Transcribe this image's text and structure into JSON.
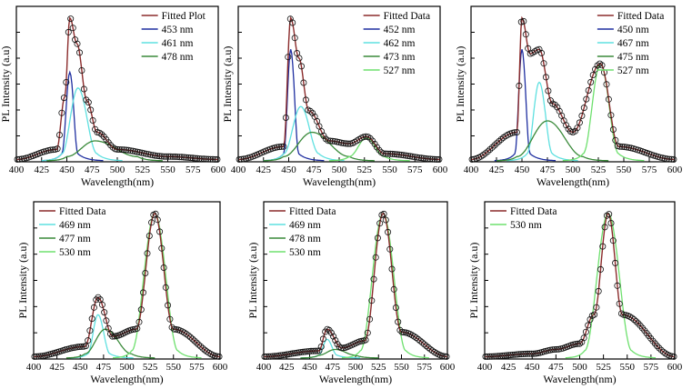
{
  "figure": {
    "title": ""
  },
  "chart_data": [
    {
      "type": "line",
      "ylabel": "PL Intensity (a.u)",
      "xlabel": "Wavelength(nm)",
      "xlim": [
        400,
        600
      ],
      "xticks": [
        400,
        425,
        450,
        475,
        500,
        525,
        550,
        575,
        600
      ],
      "legend_position": "top-right",
      "series": [
        {
          "name": "Fitted Plot",
          "color": "#8b2b2b",
          "values": [
            {
              "x": 400,
              "y": 0.01
            },
            {
              "x": 440,
              "y": 0.08
            },
            {
              "x": 448,
              "y": 0.45
            },
            {
              "x": 453,
              "y": 1.0
            },
            {
              "x": 460,
              "y": 0.82
            },
            {
              "x": 470,
              "y": 0.42
            },
            {
              "x": 480,
              "y": 0.2
            },
            {
              "x": 500,
              "y": 0.08
            },
            {
              "x": 550,
              "y": 0.03
            },
            {
              "x": 600,
              "y": 0.01
            }
          ]
        },
        {
          "name": "453 nm",
          "color": "#1f2fa0",
          "values": [
            {
              "x": 445,
              "y": 0.05
            },
            {
              "x": 453,
              "y": 0.62
            },
            {
              "x": 461,
              "y": 0.05
            }
          ]
        },
        {
          "name": "461 nm",
          "color": "#5fe0e0",
          "values": [
            {
              "x": 445,
              "y": 0.05
            },
            {
              "x": 461,
              "y": 0.51
            },
            {
              "x": 480,
              "y": 0.05
            }
          ]
        },
        {
          "name": "478 nm",
          "color": "#3a8a3a",
          "values": [
            {
              "x": 450,
              "y": 0.03
            },
            {
              "x": 478,
              "y": 0.14
            },
            {
              "x": 520,
              "y": 0.03
            }
          ]
        }
      ]
    },
    {
      "type": "line",
      "ylabel": "PL Intensity (a.u)",
      "xlabel": "Wavelength(nm)",
      "xlim": [
        400,
        600
      ],
      "xticks": [
        400,
        425,
        450,
        475,
        500,
        525,
        550,
        575,
        600
      ],
      "legend_position": "top-right",
      "series": [
        {
          "name": "Fitted Data",
          "color": "#8b2b2b",
          "values": [
            {
              "x": 400,
              "y": 0.01
            },
            {
              "x": 445,
              "y": 0.1
            },
            {
              "x": 452,
              "y": 1.0
            },
            {
              "x": 460,
              "y": 0.72
            },
            {
              "x": 470,
              "y": 0.35
            },
            {
              "x": 490,
              "y": 0.14
            },
            {
              "x": 510,
              "y": 0.12
            },
            {
              "x": 527,
              "y": 0.17
            },
            {
              "x": 545,
              "y": 0.05
            },
            {
              "x": 600,
              "y": 0.01
            }
          ]
        },
        {
          "name": "452 nm",
          "color": "#1f2fa0",
          "values": [
            {
              "x": 445,
              "y": 0.05
            },
            {
              "x": 452,
              "y": 0.78
            },
            {
              "x": 460,
              "y": 0.05
            }
          ]
        },
        {
          "name": "462 nm",
          "color": "#5fe0e0",
          "values": [
            {
              "x": 445,
              "y": 0.05
            },
            {
              "x": 462,
              "y": 0.38
            },
            {
              "x": 480,
              "y": 0.05
            }
          ]
        },
        {
          "name": "473 nm",
          "color": "#3a8a3a",
          "values": [
            {
              "x": 445,
              "y": 0.03
            },
            {
              "x": 473,
              "y": 0.2
            },
            {
              "x": 510,
              "y": 0.03
            }
          ]
        },
        {
          "name": "527 nm",
          "color": "#6ee06e",
          "values": [
            {
              "x": 510,
              "y": 0.03
            },
            {
              "x": 527,
              "y": 0.16
            },
            {
              "x": 545,
              "y": 0.03
            }
          ]
        }
      ]
    },
    {
      "type": "line",
      "ylabel": "PL Intensity (a.u)",
      "xlabel": "Wavelength(nm)",
      "xlim": [
        400,
        600
      ],
      "xticks": [
        400,
        425,
        450,
        475,
        500,
        525,
        550,
        575,
        600
      ],
      "legend_position": "top-right",
      "series": [
        {
          "name": "Fitted Data",
          "color": "#8b2b2b",
          "values": [
            {
              "x": 400,
              "y": 0.01
            },
            {
              "x": 445,
              "y": 0.2
            },
            {
              "x": 450,
              "y": 1.0
            },
            {
              "x": 458,
              "y": 0.75
            },
            {
              "x": 467,
              "y": 0.78
            },
            {
              "x": 480,
              "y": 0.4
            },
            {
              "x": 500,
              "y": 0.2
            },
            {
              "x": 527,
              "y": 0.68
            },
            {
              "x": 545,
              "y": 0.1
            },
            {
              "x": 600,
              "y": 0.01
            }
          ]
        },
        {
          "name": "450 nm",
          "color": "#1f2fa0",
          "values": [
            {
              "x": 443,
              "y": 0.05
            },
            {
              "x": 450,
              "y": 0.78
            },
            {
              "x": 458,
              "y": 0.05
            }
          ]
        },
        {
          "name": "467 nm",
          "color": "#5fe0e0",
          "values": [
            {
              "x": 455,
              "y": 0.05
            },
            {
              "x": 467,
              "y": 0.55
            },
            {
              "x": 480,
              "y": 0.05
            }
          ]
        },
        {
          "name": "475 nm",
          "color": "#3a8a3a",
          "values": [
            {
              "x": 445,
              "y": 0.03
            },
            {
              "x": 475,
              "y": 0.28
            },
            {
              "x": 510,
              "y": 0.03
            }
          ]
        },
        {
          "name": "527 nm",
          "color": "#6ee06e",
          "values": [
            {
              "x": 510,
              "y": 0.05
            },
            {
              "x": 527,
              "y": 0.68
            },
            {
              "x": 545,
              "y": 0.05
            }
          ]
        }
      ]
    },
    {
      "type": "line",
      "ylabel": "PL Intensity (a.u)",
      "xlabel": "Wavelength(nm)",
      "xlim": [
        400,
        600
      ],
      "xticks": [
        400,
        425,
        450,
        475,
        500,
        525,
        550,
        575,
        600
      ],
      "legend_position": "top-left",
      "series": [
        {
          "name": "Fitted Data",
          "color": "#8b2b2b",
          "values": [
            {
              "x": 400,
              "y": 0.01
            },
            {
              "x": 455,
              "y": 0.08
            },
            {
              "x": 469,
              "y": 0.42
            },
            {
              "x": 485,
              "y": 0.15
            },
            {
              "x": 510,
              "y": 0.2
            },
            {
              "x": 530,
              "y": 1.0
            },
            {
              "x": 550,
              "y": 0.2
            },
            {
              "x": 600,
              "y": 0.01
            }
          ]
        },
        {
          "name": "469 nm",
          "color": "#5fe0e0",
          "values": [
            {
              "x": 458,
              "y": 0.03
            },
            {
              "x": 469,
              "y": 0.3
            },
            {
              "x": 482,
              "y": 0.03
            }
          ]
        },
        {
          "name": "477 nm",
          "color": "#3a8a3a",
          "values": [
            {
              "x": 455,
              "y": 0.03
            },
            {
              "x": 477,
              "y": 0.2
            },
            {
              "x": 505,
              "y": 0.03
            }
          ]
        },
        {
          "name": "530 nm",
          "color": "#6ee06e",
          "values": [
            {
              "x": 505,
              "y": 0.05
            },
            {
              "x": 530,
              "y": 1.0
            },
            {
              "x": 555,
              "y": 0.05
            }
          ]
        }
      ]
    },
    {
      "type": "line",
      "ylabel": "PL Intensity (a.u)",
      "xlabel": "Wavelength(nm)",
      "xlim": [
        400,
        600
      ],
      "xticks": [
        400,
        425,
        450,
        475,
        500,
        525,
        550,
        575,
        600
      ],
      "legend_position": "top-left",
      "series": [
        {
          "name": "Fitted Data",
          "color": "#8b2b2b",
          "values": [
            {
              "x": 400,
              "y": 0.01
            },
            {
              "x": 460,
              "y": 0.05
            },
            {
              "x": 469,
              "y": 0.2
            },
            {
              "x": 485,
              "y": 0.07
            },
            {
              "x": 510,
              "y": 0.12
            },
            {
              "x": 530,
              "y": 1.0
            },
            {
              "x": 550,
              "y": 0.18
            },
            {
              "x": 600,
              "y": 0.01
            }
          ]
        },
        {
          "name": "469 nm",
          "color": "#5fe0e0",
          "values": [
            {
              "x": 460,
              "y": 0.02
            },
            {
              "x": 469,
              "y": 0.13
            },
            {
              "x": 480,
              "y": 0.02
            }
          ]
        },
        {
          "name": "478 nm",
          "color": "#3a8a3a",
          "values": [
            {
              "x": 460,
              "y": 0.02
            },
            {
              "x": 478,
              "y": 0.06
            },
            {
              "x": 500,
              "y": 0.02
            }
          ]
        },
        {
          "name": "530 nm",
          "color": "#6ee06e",
          "values": [
            {
              "x": 505,
              "y": 0.05
            },
            {
              "x": 530,
              "y": 1.0
            },
            {
              "x": 555,
              "y": 0.05
            }
          ]
        }
      ]
    },
    {
      "type": "line",
      "ylabel": "PL Intensity (a.u)",
      "xlabel": "Wavelength(nm)",
      "xlim": [
        400,
        600
      ],
      "xticks": [
        400,
        425,
        450,
        475,
        500,
        525,
        550,
        575,
        600
      ],
      "legend_position": "top-left",
      "series": [
        {
          "name": "Fitted Data",
          "color": "#8b2b2b",
          "values": [
            {
              "x": 400,
              "y": 0.01
            },
            {
              "x": 450,
              "y": 0.03
            },
            {
              "x": 475,
              "y": 0.06
            },
            {
              "x": 500,
              "y": 0.1
            },
            {
              "x": 515,
              "y": 0.3
            },
            {
              "x": 530,
              "y": 1.0
            },
            {
              "x": 545,
              "y": 0.3
            },
            {
              "x": 600,
              "y": 0.01
            }
          ]
        },
        {
          "name": "530 nm",
          "color": "#6ee06e",
          "values": [
            {
              "x": 505,
              "y": 0.05
            },
            {
              "x": 530,
              "y": 1.0
            },
            {
              "x": 555,
              "y": 0.05
            }
          ]
        }
      ]
    }
  ]
}
